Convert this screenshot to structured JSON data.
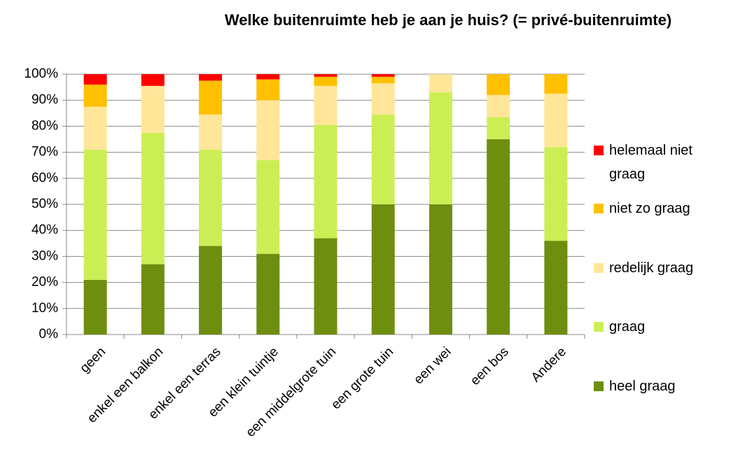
{
  "chart_data": {
    "type": "stacked_bar",
    "title": "Welke buitenruimte heb je aan je huis? (= privé-buitenruimte)",
    "categories": [
      "geen",
      "enkel een balkon",
      "enkel een terras",
      "een klein tuintje",
      "een middelgrote tuin",
      "een grote tuin",
      "een wei",
      "een bos",
      "Andere"
    ],
    "series": [
      {
        "name": "heel graag",
        "color": "#6e8e10",
        "values": [
          21,
          27,
          34,
          31,
          37,
          50,
          50,
          75,
          36
        ]
      },
      {
        "name": "graag",
        "color": "#ccee55",
        "values": [
          50,
          50.5,
          37,
          36,
          43.5,
          34.5,
          43,
          8.5,
          36
        ]
      },
      {
        "name": "redelijk graag",
        "color": "#ffe699",
        "values": [
          16.5,
          18,
          13.5,
          23,
          15,
          12,
          7,
          8.5,
          20.5
        ]
      },
      {
        "name": "niet zo graag",
        "color": "#ffc000",
        "values": [
          8.5,
          0,
          13,
          8,
          3.5,
          2.5,
          0,
          8,
          7.5
        ]
      },
      {
        "name": "helemaal niet graag",
        "color": "#ff0000",
        "values": [
          4,
          4.5,
          2.5,
          2,
          1,
          1,
          0,
          0,
          0
        ]
      }
    ],
    "ylim": [
      0,
      100
    ],
    "yticks": [
      {
        "value": 0,
        "label": "0%"
      },
      {
        "value": 10,
        "label": "10%"
      },
      {
        "value": 20,
        "label": "20%"
      },
      {
        "value": 30,
        "label": "30%"
      },
      {
        "value": 40,
        "label": "40%"
      },
      {
        "value": 50,
        "label": "50%"
      },
      {
        "value": 60,
        "label": "60%"
      },
      {
        "value": 70,
        "label": "70%"
      },
      {
        "value": 80,
        "label": "80%"
      },
      {
        "value": 90,
        "label": "90%"
      },
      {
        "value": 100,
        "label": "100%"
      }
    ],
    "grid": true,
    "legend": "right"
  }
}
